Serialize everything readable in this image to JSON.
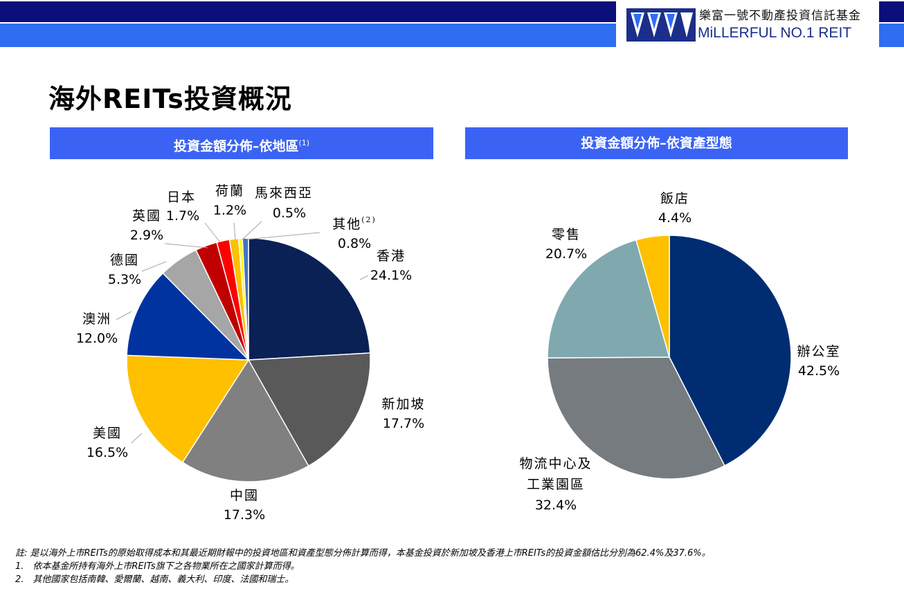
{
  "header": {
    "brand_cn": "樂富一號不動產投資信託基金",
    "brand_en": "MiLLERFUL NO.1 REIT"
  },
  "page_title": "海外REITs投資概況",
  "colors": {
    "dark_band": "#0b0f7a",
    "accent_band": "#2f6df1",
    "section_bar": "#3b63f3"
  },
  "sections": {
    "left_title": "投資金額分佈–依地區",
    "left_title_sup": "(1)",
    "right_title": "投資金額分佈–依資產型態"
  },
  "chart_data": [
    {
      "type": "pie",
      "title": "投資金額分佈–依地區",
      "slices": [
        {
          "label": "香港",
          "value": 24.1,
          "value_label": "24.1%",
          "color": "#0a2155"
        },
        {
          "label": "新加坡",
          "value": 17.7,
          "value_label": "17.7%",
          "color": "#595959"
        },
        {
          "label": "中國",
          "value": 17.3,
          "value_label": "17.3%",
          "color": "#808080"
        },
        {
          "label": "美國",
          "value": 16.5,
          "value_label": "16.5%",
          "color": "#ffc000"
        },
        {
          "label": "澳洲",
          "value": 12.0,
          "value_label": "12.0%",
          "color": "#0033a0"
        },
        {
          "label": "德國",
          "value": 5.3,
          "value_label": "5.3%",
          "color": "#a6a6a6"
        },
        {
          "label": "英國",
          "value": 2.9,
          "value_label": "2.9%",
          "color": "#c00000"
        },
        {
          "label": "日本",
          "value": 1.7,
          "value_label": "1.7%",
          "color": "#ff0000"
        },
        {
          "label": "荷蘭",
          "value": 1.2,
          "value_label": "1.2%",
          "color": "#ffc000"
        },
        {
          "label": "馬來西亞",
          "value": 0.5,
          "value_label": "0.5%",
          "color": "#ffff00"
        },
        {
          "label": "其他",
          "label_sup": "(2)",
          "value": 0.8,
          "value_label": "0.8%",
          "color": "#4472c4"
        }
      ]
    },
    {
      "type": "pie",
      "title": "投資金額分佈–依資產型態",
      "slices": [
        {
          "label": "辦公室",
          "value": 42.5,
          "value_label": "42.5%",
          "color": "#002d72"
        },
        {
          "label": "物流中心及",
          "label2": "工業園區",
          "value": 32.4,
          "value_label": "32.4%",
          "color": "#767b80"
        },
        {
          "label": "零售",
          "value": 20.7,
          "value_label": "20.7%",
          "color": "#7fa9ae"
        },
        {
          "label": "飯店",
          "value": 4.4,
          "value_label": "4.4%",
          "color": "#ffc000"
        }
      ]
    }
  ],
  "notes": {
    "line1": "註: 是以海外上市REITs的原始取得成本和其最近期財報中的投資地區和資產型態分佈計算而得，本基金投資於新加坡及香港上市REITs的投資金額估比分別為62.4%及37.6%。",
    "line2": "1.　依本基金所持有海外上市REITs旗下之各物業所在之國家計算而得。",
    "line3": "2.　其他國家包括南韓、愛爾蘭、越南、義大利、印度、法國和瑞士。"
  }
}
